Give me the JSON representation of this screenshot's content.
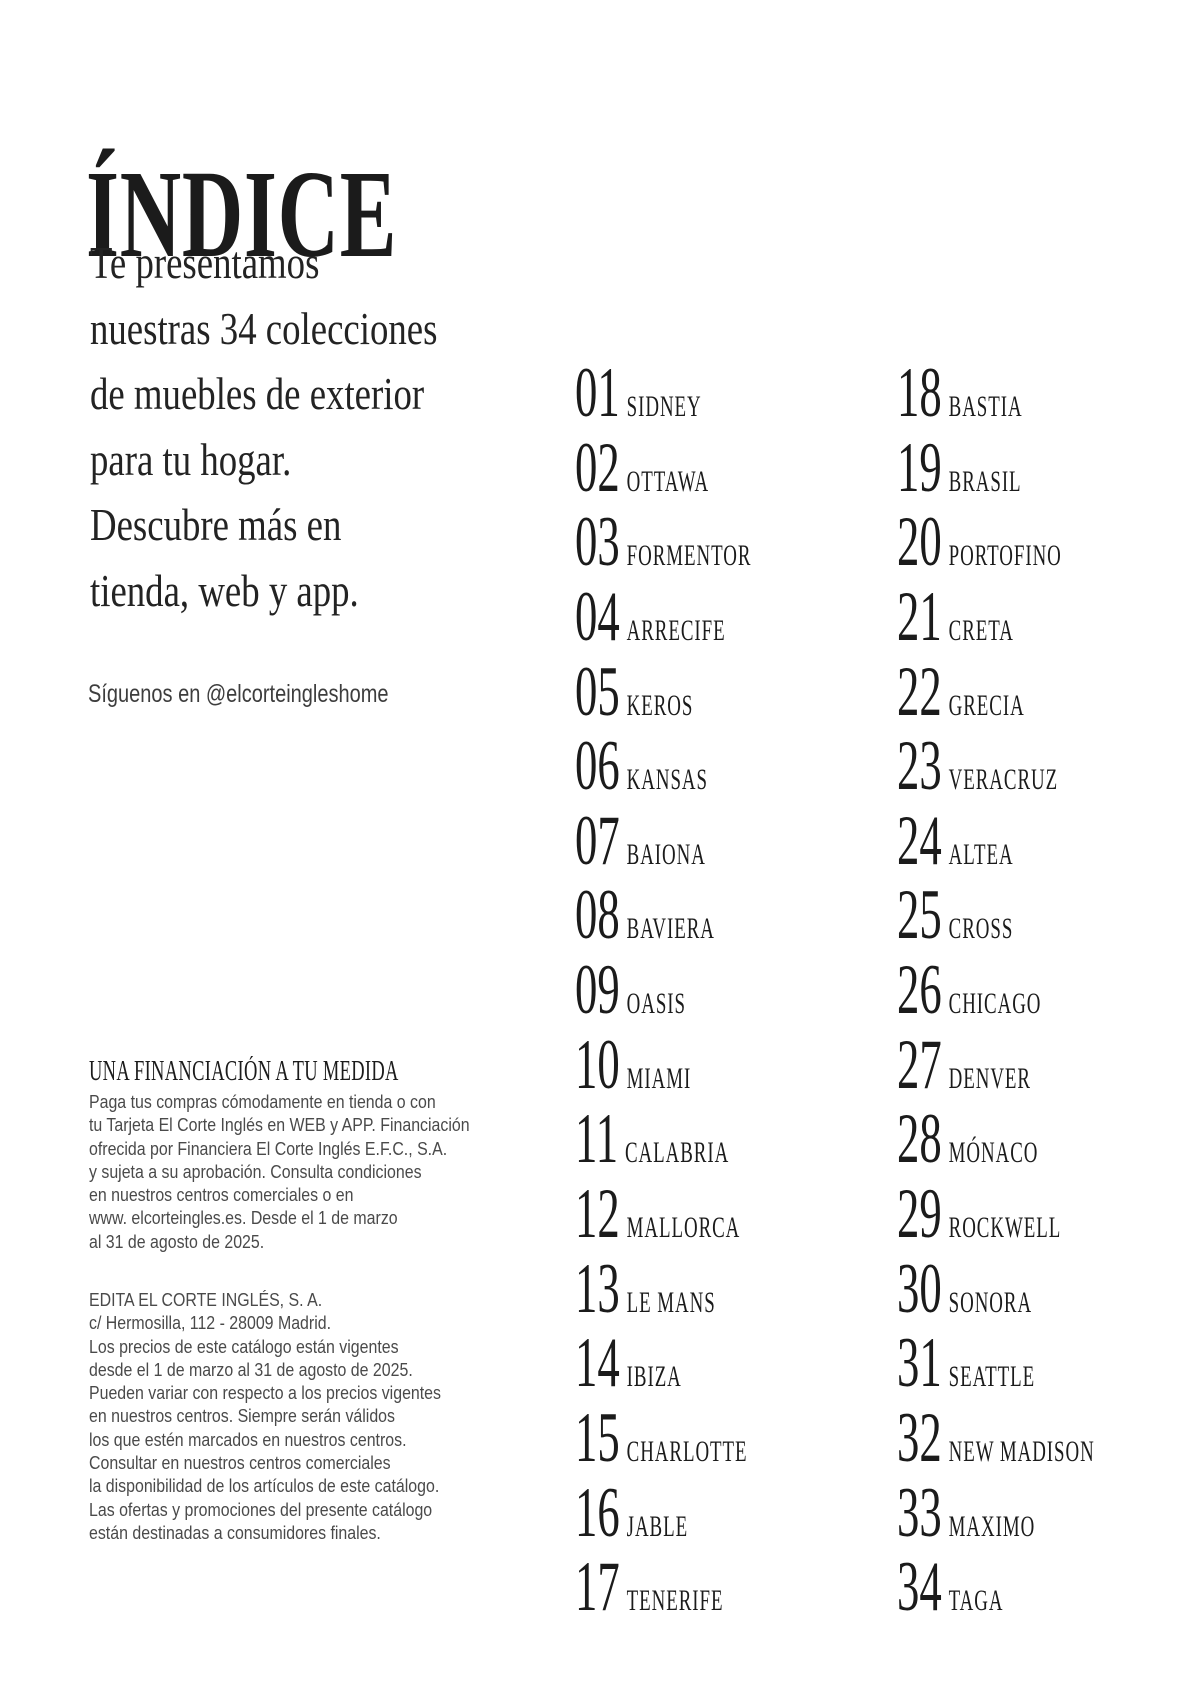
{
  "page": {
    "title": "ÍNDICE",
    "background_color": "#ffffff",
    "text_color": "#1b1b1b",
    "muted_text_color": "#4a4a4a"
  },
  "intro": {
    "lines": [
      "Te presentamos",
      "nuestras 34 colecciones",
      "de muebles de exterior",
      "para tu hogar.",
      "Descubre más en",
      "tienda, web y app."
    ]
  },
  "social": {
    "text": "Síguenos en @elcorteingleshome"
  },
  "financing": {
    "heading": "UNA FINANCIACIÓN A TU MEDIDA",
    "lines": [
      "Paga tus compras cómodamente en tienda o con",
      "tu Tarjeta El Corte Inglés en WEB y APP. Financiación",
      "ofrecida por Financiera El Corte Inglés E.F.C., S.A.",
      "y sujeta a su aprobación. Consulta condiciones",
      "en nuestros centros comerciales o en",
      "www. elcorteingles.es. Desde el 1 de marzo",
      "al 31 de agosto de 2025."
    ]
  },
  "legal": {
    "lines": [
      "EDITA EL CORTE INGLÉS, S. A.",
      "c/ Hermosilla, 112 - 28009 Madrid.",
      "Los precios de este catálogo están vigentes",
      "desde el 1 de marzo al 31 de agosto de 2025.",
      "Pueden variar con respecto a los precios vigentes",
      "en nuestros centros. Siempre serán válidos",
      "los que estén marcados en nuestros centros.",
      "Consultar en nuestros centros comerciales",
      "la disponibilidad de los artículos de este catálogo.",
      "Las ofertas y promociones del presente catálogo",
      "están destinadas a consumidores finales."
    ]
  },
  "index": {
    "column1": [
      {
        "number": "01",
        "name": "SIDNEY"
      },
      {
        "number": "02",
        "name": "OTTAWA"
      },
      {
        "number": "03",
        "name": "FORMENTOR"
      },
      {
        "number": "04",
        "name": "ARRECIFE"
      },
      {
        "number": "05",
        "name": "KEROS"
      },
      {
        "number": "06",
        "name": "KANSAS"
      },
      {
        "number": "07",
        "name": "BAIONA"
      },
      {
        "number": "08",
        "name": "BAVIERA"
      },
      {
        "number": "09",
        "name": "OASIS"
      },
      {
        "number": "10",
        "name": "MIAMI"
      },
      {
        "number": "11",
        "name": "CALABRIA"
      },
      {
        "number": "12",
        "name": "MALLORCA"
      },
      {
        "number": "13",
        "name": "LE MANS"
      },
      {
        "number": "14",
        "name": "IBIZA"
      },
      {
        "number": "15",
        "name": "CHARLOTTE"
      },
      {
        "number": "16",
        "name": "JABLE"
      },
      {
        "number": "17",
        "name": "TENERIFE"
      }
    ],
    "column2": [
      {
        "number": "18",
        "name": "BASTIA"
      },
      {
        "number": "19",
        "name": "BRASIL"
      },
      {
        "number": "20",
        "name": "PORTOFINO"
      },
      {
        "number": "21",
        "name": "CRETA"
      },
      {
        "number": "22",
        "name": "GRECIA"
      },
      {
        "number": "23",
        "name": "VERACRUZ"
      },
      {
        "number": "24",
        "name": "ALTEA"
      },
      {
        "number": "25",
        "name": "CROSS"
      },
      {
        "number": "26",
        "name": "CHICAGO"
      },
      {
        "number": "27",
        "name": "DENVER"
      },
      {
        "number": "28",
        "name": "MÓNACO"
      },
      {
        "number": "29",
        "name": "ROCKWELL"
      },
      {
        "number": "30",
        "name": "SONORA"
      },
      {
        "number": "31",
        "name": "SEATTLE"
      },
      {
        "number": "32",
        "name": "NEW MADISON"
      },
      {
        "number": "33",
        "name": "MAXIMO"
      },
      {
        "number": "34",
        "name": "TAGA"
      }
    ]
  }
}
